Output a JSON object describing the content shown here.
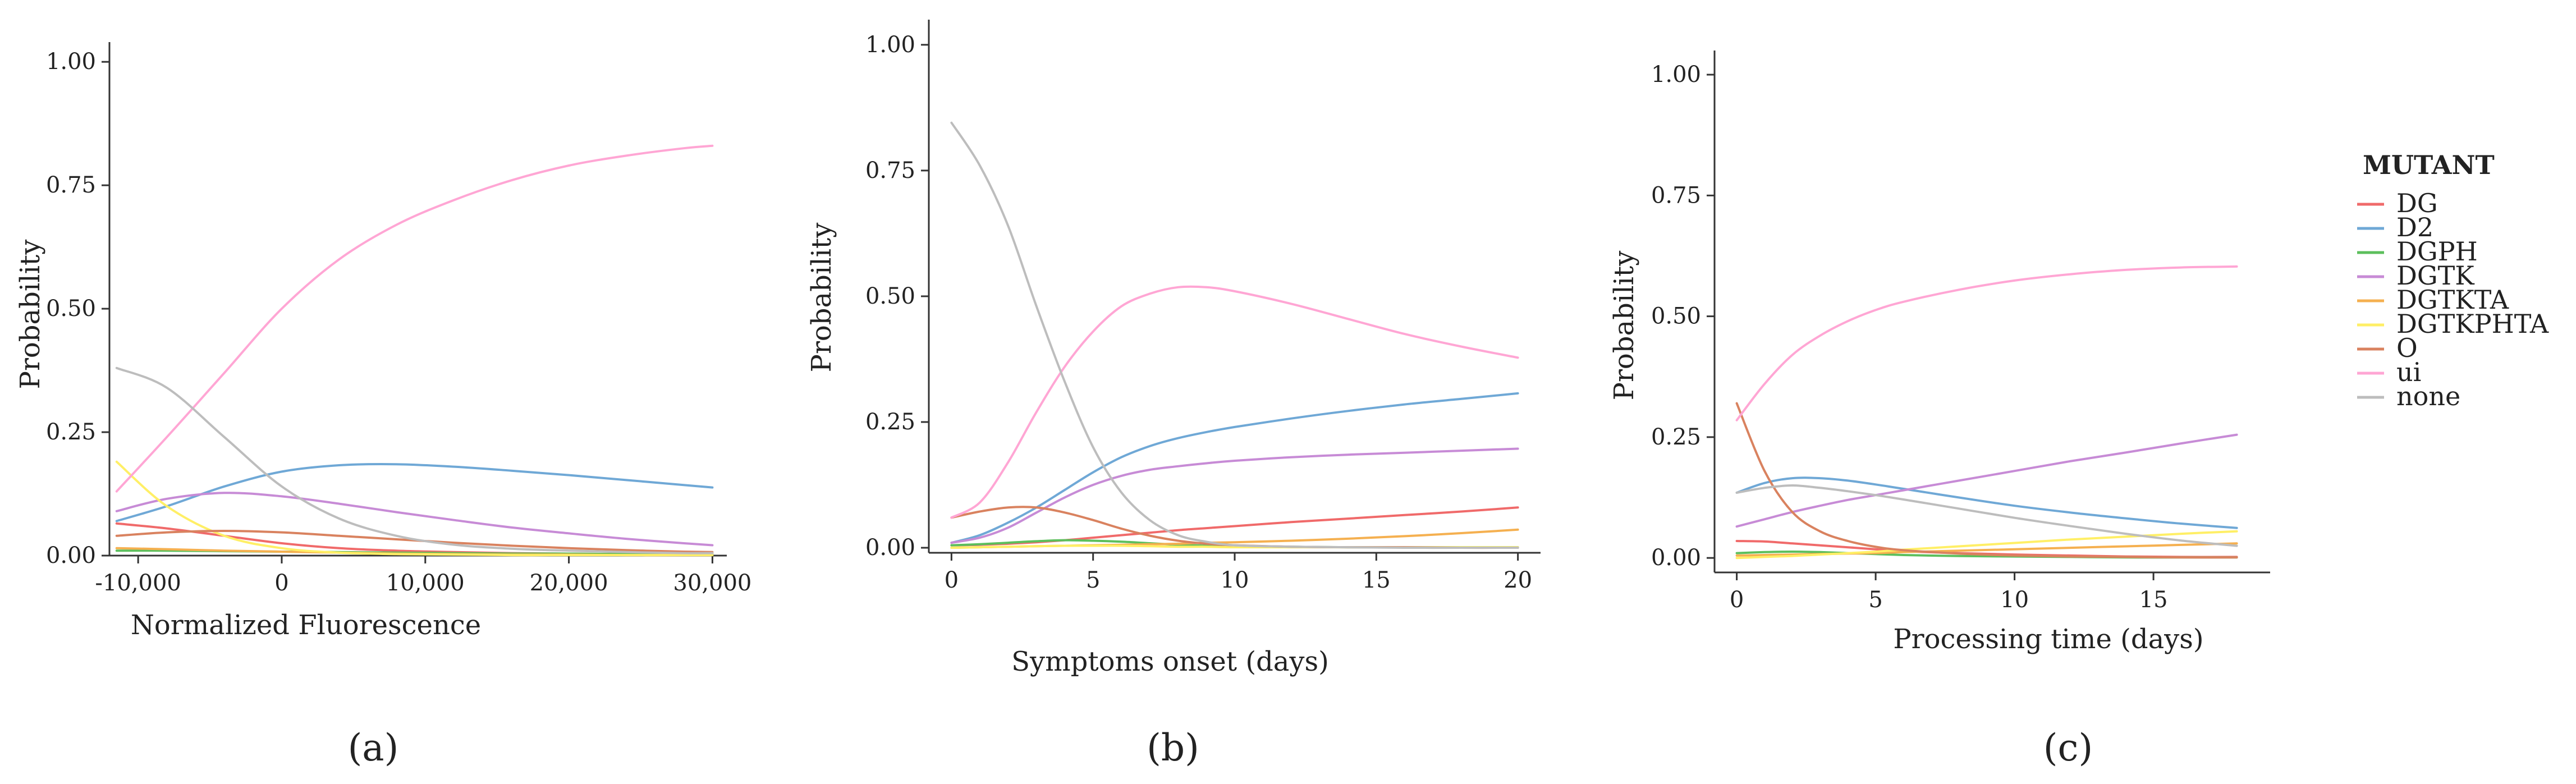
{
  "legend": {
    "title": "MUTANT",
    "entries": [
      {
        "name": "DG",
        "color": "#f06a6a"
      },
      {
        "name": "D2",
        "color": "#6fa8d6"
      },
      {
        "name": "DGPH",
        "color": "#5cbf5c"
      },
      {
        "name": "DGTK",
        "color": "#c78bd6"
      },
      {
        "name": "DGTKTA",
        "color": "#f5b050"
      },
      {
        "name": "DGTKPHTA",
        "color": "#ffef66"
      },
      {
        "name": "O",
        "color": "#d9825f"
      },
      {
        "name": "ui",
        "color": "#ffa6d4"
      },
      {
        "name": "none",
        "color": "#bdbdbd"
      }
    ]
  },
  "chart_data": [
    {
      "type": "line",
      "panel_label": "(a)",
      "panel_letter": "a",
      "xlabel": "Normalized Fluorescence",
      "ylabel": "Probability",
      "xlim": [
        -12000,
        31000
      ],
      "ylim": [
        0,
        1.04
      ],
      "xticks": [
        -10000,
        0,
        10000,
        20000,
        30000
      ],
      "xtick_labels": [
        "-10,000",
        "0",
        "10,000",
        "20,000",
        "30,000"
      ],
      "yticks": [
        0,
        0.25,
        0.5,
        0.75,
        1.0
      ],
      "ytick_labels": [
        "0.00",
        "0.25",
        "0.50",
        "0.75",
        "1.00"
      ],
      "x": [
        -11500,
        -8000,
        -4000,
        0,
        4000,
        8000,
        12000,
        16000,
        20000,
        24000,
        28000,
        30000
      ],
      "series": [
        {
          "name": "DG",
          "values": [
            0.065,
            0.055,
            0.04,
            0.025,
            0.015,
            0.01,
            0.007,
            0.005,
            0.004,
            0.003,
            0.002,
            0.002
          ]
        },
        {
          "name": "D2",
          "values": [
            0.07,
            0.1,
            0.14,
            0.17,
            0.183,
            0.185,
            0.18,
            0.172,
            0.163,
            0.153,
            0.143,
            0.138
          ]
        },
        {
          "name": "DGPH",
          "values": [
            0.01,
            0.01,
            0.009,
            0.008,
            0.007,
            0.006,
            0.005,
            0.004,
            0.004,
            0.003,
            0.003,
            0.003
          ]
        },
        {
          "name": "DGTK",
          "values": [
            0.09,
            0.115,
            0.127,
            0.12,
            0.105,
            0.088,
            0.072,
            0.057,
            0.045,
            0.034,
            0.025,
            0.021
          ]
        },
        {
          "name": "DGTKTA",
          "values": [
            0.015,
            0.013,
            0.01,
            0.008,
            0.006,
            0.004,
            0.003,
            0.002,
            0.002,
            0.001,
            0.001,
            0.001
          ]
        },
        {
          "name": "DGTKPHTA",
          "values": [
            0.19,
            0.1,
            0.04,
            0.015,
            0.006,
            0.003,
            0.002,
            0.001,
            0.001,
            0.001,
            0.001,
            0.001
          ]
        },
        {
          "name": "O",
          "values": [
            0.04,
            0.047,
            0.05,
            0.047,
            0.04,
            0.033,
            0.026,
            0.02,
            0.015,
            0.011,
            0.008,
            0.007
          ]
        },
        {
          "name": "ui",
          "values": [
            0.13,
            0.24,
            0.37,
            0.5,
            0.6,
            0.67,
            0.72,
            0.76,
            0.79,
            0.81,
            0.825,
            0.83
          ]
        },
        {
          "name": "none",
          "values": [
            0.38,
            0.34,
            0.24,
            0.14,
            0.075,
            0.04,
            0.022,
            0.014,
            0.01,
            0.007,
            0.005,
            0.005
          ]
        }
      ]
    },
    {
      "type": "line",
      "panel_label": "(b)",
      "panel_letter": "b",
      "xlabel": "Symptoms onset (days)",
      "ylabel": "Probability",
      "xlim": [
        -0.8,
        20.8
      ],
      "ylim": [
        -0.01,
        1.05
      ],
      "xticks": [
        0,
        5,
        10,
        15,
        20
      ],
      "xtick_labels": [
        "0",
        "5",
        "10",
        "15",
        "20"
      ],
      "yticks": [
        0,
        0.25,
        0.5,
        0.75,
        1.0
      ],
      "ytick_labels": [
        "0.00",
        "0.25",
        "0.50",
        "0.75",
        "1.00"
      ],
      "x": [
        0,
        1,
        2,
        3,
        4,
        5,
        6,
        7,
        8,
        9,
        10,
        12,
        14,
        16,
        18,
        20
      ],
      "series": [
        {
          "name": "DG",
          "values": [
            0.005,
            0.006,
            0.008,
            0.011,
            0.015,
            0.02,
            0.025,
            0.03,
            0.035,
            0.039,
            0.043,
            0.051,
            0.058,
            0.065,
            0.072,
            0.08
          ]
        },
        {
          "name": "D2",
          "values": [
            0.01,
            0.025,
            0.05,
            0.08,
            0.115,
            0.15,
            0.18,
            0.202,
            0.218,
            0.23,
            0.24,
            0.257,
            0.272,
            0.285,
            0.296,
            0.307
          ]
        },
        {
          "name": "DGPH",
          "values": [
            0.005,
            0.007,
            0.01,
            0.013,
            0.015,
            0.014,
            0.012,
            0.009,
            0.006,
            0.004,
            0.003,
            0.002,
            0.001,
            0.001,
            0.001,
            0.001
          ]
        },
        {
          "name": "DGTK",
          "values": [
            0.01,
            0.02,
            0.04,
            0.07,
            0.1,
            0.125,
            0.143,
            0.155,
            0.162,
            0.168,
            0.173,
            0.18,
            0.185,
            0.189,
            0.193,
            0.197
          ]
        },
        {
          "name": "DGTKTA",
          "values": [
            0.0,
            0.001,
            0.002,
            0.003,
            0.004,
            0.005,
            0.006,
            0.007,
            0.008,
            0.01,
            0.011,
            0.014,
            0.018,
            0.023,
            0.029,
            0.036
          ]
        },
        {
          "name": "DGTKPHTA",
          "values": [
            0.0,
            0.001,
            0.002,
            0.003,
            0.004,
            0.004,
            0.004,
            0.003,
            0.002,
            0.002,
            0.001,
            0.001,
            0.001,
            0.001,
            0.001,
            0.001
          ]
        },
        {
          "name": "O",
          "values": [
            0.06,
            0.072,
            0.08,
            0.08,
            0.07,
            0.055,
            0.038,
            0.024,
            0.014,
            0.008,
            0.005,
            0.002,
            0.001,
            0.001,
            0.0,
            0.0
          ]
        },
        {
          "name": "ui",
          "values": [
            0.06,
            0.09,
            0.17,
            0.27,
            0.36,
            0.43,
            0.48,
            0.505,
            0.518,
            0.518,
            0.51,
            0.485,
            0.455,
            0.425,
            0.4,
            0.378
          ]
        },
        {
          "name": "none",
          "values": [
            0.845,
            0.76,
            0.64,
            0.48,
            0.33,
            0.2,
            0.11,
            0.055,
            0.025,
            0.012,
            0.005,
            0.002,
            0.001,
            0.0,
            0.0,
            0.0
          ]
        }
      ]
    },
    {
      "type": "line",
      "panel_label": "(c)",
      "panel_letter": "c",
      "xlabel": "Processing time (days)",
      "ylabel": "Probability",
      "xlim": [
        -0.8,
        19.2
      ],
      "ylim": [
        -0.03,
        1.05
      ],
      "xticks": [
        0,
        5,
        10,
        15
      ],
      "xtick_labels": [
        "0",
        "5",
        "10",
        "15"
      ],
      "yticks": [
        0,
        0.25,
        0.5,
        0.75,
        1.0
      ],
      "ytick_labels": [
        "0.00",
        "0.25",
        "0.50",
        "0.75",
        "1.00"
      ],
      "x": [
        0,
        1,
        2,
        3,
        4,
        5,
        6,
        8,
        10,
        12,
        14,
        16,
        18
      ],
      "series": [
        {
          "name": "DG",
          "values": [
            0.035,
            0.034,
            0.03,
            0.026,
            0.022,
            0.018,
            0.014,
            0.01,
            0.007,
            0.005,
            0.003,
            0.002,
            0.002
          ]
        },
        {
          "name": "D2",
          "values": [
            0.135,
            0.155,
            0.165,
            0.165,
            0.16,
            0.152,
            0.143,
            0.125,
            0.108,
            0.094,
            0.082,
            0.071,
            0.062
          ]
        },
        {
          "name": "DGPH",
          "values": [
            0.01,
            0.012,
            0.013,
            0.012,
            0.01,
            0.008,
            0.006,
            0.004,
            0.003,
            0.002,
            0.001,
            0.001,
            0.001
          ]
        },
        {
          "name": "DGTK",
          "values": [
            0.065,
            0.08,
            0.095,
            0.108,
            0.12,
            0.13,
            0.14,
            0.16,
            0.18,
            0.2,
            0.218,
            0.237,
            0.255
          ]
        },
        {
          "name": "DGTKTA",
          "values": [
            0.005,
            0.006,
            0.007,
            0.008,
            0.009,
            0.01,
            0.012,
            0.015,
            0.018,
            0.021,
            0.024,
            0.027,
            0.03
          ]
        },
        {
          "name": "DGTKPHTA",
          "values": [
            0.0,
            0.002,
            0.004,
            0.007,
            0.01,
            0.013,
            0.017,
            0.024,
            0.031,
            0.038,
            0.044,
            0.05,
            0.055
          ]
        },
        {
          "name": "O",
          "values": [
            0.32,
            0.18,
            0.095,
            0.055,
            0.035,
            0.023,
            0.016,
            0.009,
            0.005,
            0.003,
            0.002,
            0.001,
            0.001
          ]
        },
        {
          "name": "ui",
          "values": [
            0.285,
            0.36,
            0.42,
            0.46,
            0.49,
            0.513,
            0.53,
            0.555,
            0.574,
            0.587,
            0.596,
            0.601,
            0.603
          ]
        },
        {
          "name": "none",
          "values": [
            0.135,
            0.145,
            0.15,
            0.145,
            0.138,
            0.13,
            0.121,
            0.102,
            0.083,
            0.066,
            0.05,
            0.036,
            0.025
          ]
        }
      ]
    }
  ]
}
